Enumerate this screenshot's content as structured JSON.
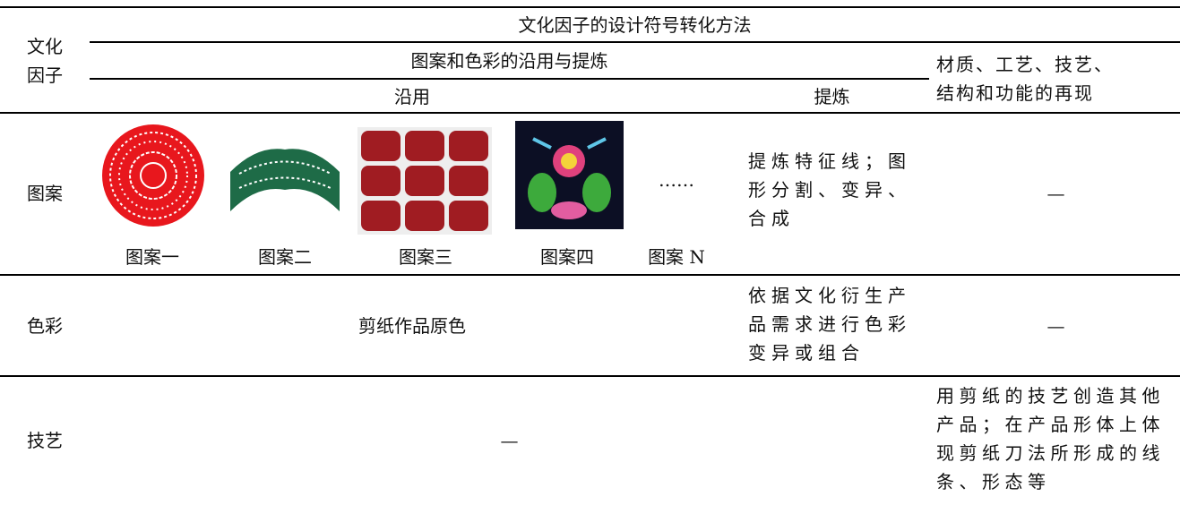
{
  "header": {
    "factor_label": "文化因子",
    "method_title": "文化因子的设计符号转化方法",
    "group_title": "图案和色彩的沿用与提炼",
    "reuse": "沿用",
    "refine": "提炼",
    "material": "材质、工艺、技艺、结构和功能的再现"
  },
  "rows": [
    {
      "factor": "图案",
      "patterns": [
        "图案一",
        "图案二",
        "图案三",
        "图案四",
        "图案 N"
      ],
      "ellipsis": "……",
      "refine": "提炼特征线；图形分割、变异、合成",
      "material": "—"
    },
    {
      "factor": "色彩",
      "reuse": "剪纸作品原色",
      "refine": "依据文化衍生产品需求进行色彩变异或组合",
      "material": "—"
    },
    {
      "factor": "技艺",
      "pattern_color": "—",
      "material": "用剪纸的技艺创造其他产品；在产品形体上体现剪纸刀法所形成的线条、形态等"
    }
  ]
}
